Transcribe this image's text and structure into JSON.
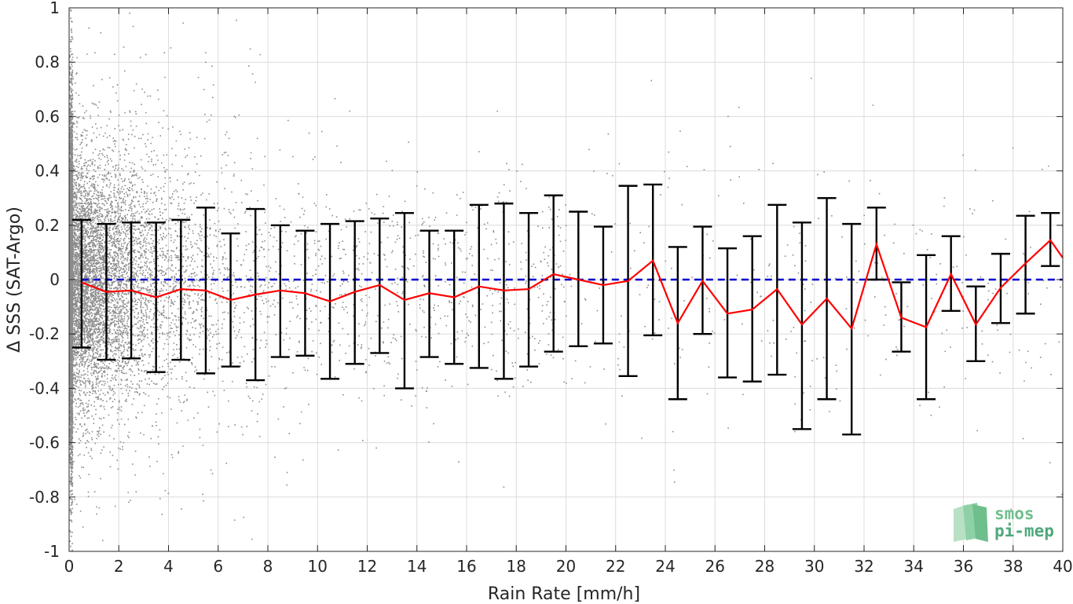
{
  "chart_data": {
    "type": "scatter",
    "title": "",
    "xlabel": "Rain Rate [mm/h]",
    "ylabel": "Δ SSS (SAT-Argo)",
    "xlim": [
      0,
      40
    ],
    "ylim": [
      -1,
      1
    ],
    "xticks": [
      0,
      2,
      4,
      6,
      8,
      10,
      12,
      14,
      16,
      18,
      20,
      22,
      24,
      26,
      28,
      30,
      32,
      34,
      36,
      38,
      40
    ],
    "yticks": [
      -1,
      -0.8,
      -0.6,
      -0.4,
      -0.2,
      0,
      0.2,
      0.4,
      0.6,
      0.8,
      1
    ],
    "ytick_labels": [
      "-1",
      "-0.8",
      "-0.6",
      "-0.4",
      "-0.2",
      "0",
      "0.2",
      "0.4",
      "0.6",
      "0.8",
      "1"
    ],
    "grid": true,
    "scatter_color": "#8c8c8c",
    "mean_color": "#ff0000",
    "errorbar_color": "#000000",
    "reference_color": "#0000cc",
    "reference_line": {
      "y": 0,
      "style": "dashed"
    },
    "bins": {
      "x": [
        0.5,
        1.5,
        2.5,
        3.5,
        4.5,
        5.5,
        6.5,
        7.5,
        8.5,
        9.5,
        10.5,
        11.5,
        12.5,
        13.5,
        14.5,
        15.5,
        16.5,
        17.5,
        18.5,
        19.5,
        20.5,
        21.5,
        22.5,
        23.5,
        24.5,
        25.5,
        26.5,
        27.5,
        28.5,
        29.5,
        30.5,
        31.5,
        32.5,
        33.5,
        34.5,
        35.5,
        36.5,
        37.5,
        38.5,
        39.5
      ],
      "mean": [
        -0.01,
        -0.045,
        -0.04,
        -0.065,
        -0.035,
        -0.04,
        -0.075,
        -0.055,
        -0.04,
        -0.05,
        -0.08,
        -0.045,
        -0.02,
        -0.075,
        -0.05,
        -0.065,
        -0.025,
        -0.04,
        -0.035,
        0.02,
        0.0,
        -0.02,
        -0.005,
        0.07,
        -0.16,
        -0.005,
        -0.125,
        -0.11,
        -0.035,
        -0.165,
        -0.07,
        -0.18,
        0.13,
        -0.14,
        -0.175,
        0.02,
        -0.165,
        -0.03,
        0.06,
        0.145
      ],
      "upper": [
        0.22,
        0.205,
        0.21,
        0.21,
        0.22,
        0.265,
        0.17,
        0.26,
        0.2,
        0.18,
        0.205,
        0.215,
        0.225,
        0.245,
        0.18,
        0.18,
        0.275,
        0.28,
        0.245,
        0.31,
        0.25,
        0.195,
        0.345,
        0.35,
        0.12,
        0.195,
        0.115,
        0.16,
        0.275,
        0.21,
        0.3,
        0.205,
        0.265,
        -0.01,
        0.09,
        0.16,
        -0.025,
        0.095,
        0.235,
        0.245
      ],
      "lower": [
        -0.25,
        -0.295,
        -0.29,
        -0.34,
        -0.295,
        -0.345,
        -0.32,
        -0.37,
        -0.285,
        -0.28,
        -0.365,
        -0.31,
        -0.27,
        -0.4,
        -0.285,
        -0.31,
        -0.325,
        -0.365,
        -0.32,
        -0.265,
        -0.245,
        -0.235,
        -0.355,
        -0.205,
        -0.44,
        -0.2,
        -0.36,
        -0.375,
        -0.35,
        -0.55,
        -0.44,
        -0.57,
        0.0,
        -0.265,
        -0.44,
        -0.115,
        -0.3,
        -0.16,
        -0.125,
        0.05
      ],
      "mean_end": {
        "x": 40,
        "y": 0.08
      }
    }
  },
  "logo": {
    "line1": "smos",
    "line2": "pi-mep"
  }
}
